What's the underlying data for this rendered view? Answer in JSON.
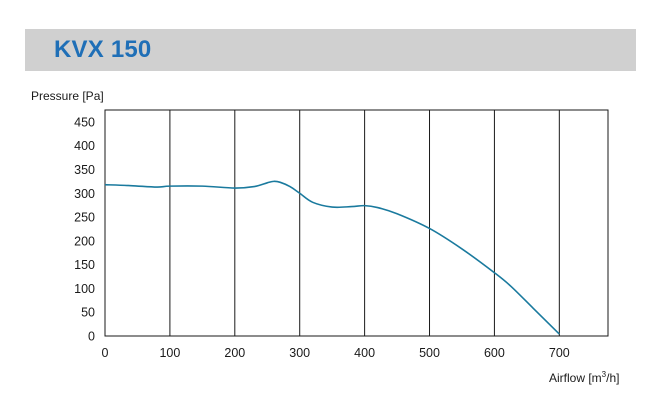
{
  "header": {
    "title": "KVX 150"
  },
  "chart_data": {
    "type": "line",
    "title": "KVX 150",
    "ylabel": "Pressure [Pa]",
    "xlabel_main": "Airflow [m",
    "xlabel_sup": "3",
    "xlabel_end": "/h]",
    "xlim": [
      0,
      775
    ],
    "ylim": [
      0,
      475
    ],
    "xticks": [
      0,
      100,
      200,
      300,
      400,
      500,
      600,
      700
    ],
    "yticks": [
      0,
      50,
      100,
      150,
      200,
      250,
      300,
      350,
      400,
      450
    ],
    "grid": {
      "vertical": true,
      "horizontal": false
    },
    "line_color": "#1a7a9e",
    "series": [
      {
        "x": [
          0,
          40,
          80,
          100,
          150,
          200,
          230,
          250,
          260,
          270,
          285,
          300,
          320,
          350,
          380,
          400,
          420,
          450,
          500,
          550,
          600,
          625,
          660,
          700
        ],
        "y": [
          318,
          316,
          313,
          315,
          315,
          311,
          314,
          322,
          325,
          323,
          314,
          300,
          281,
          271,
          272,
          274,
          270,
          257,
          226,
          183,
          133,
          105,
          58,
          4
        ]
      }
    ]
  }
}
